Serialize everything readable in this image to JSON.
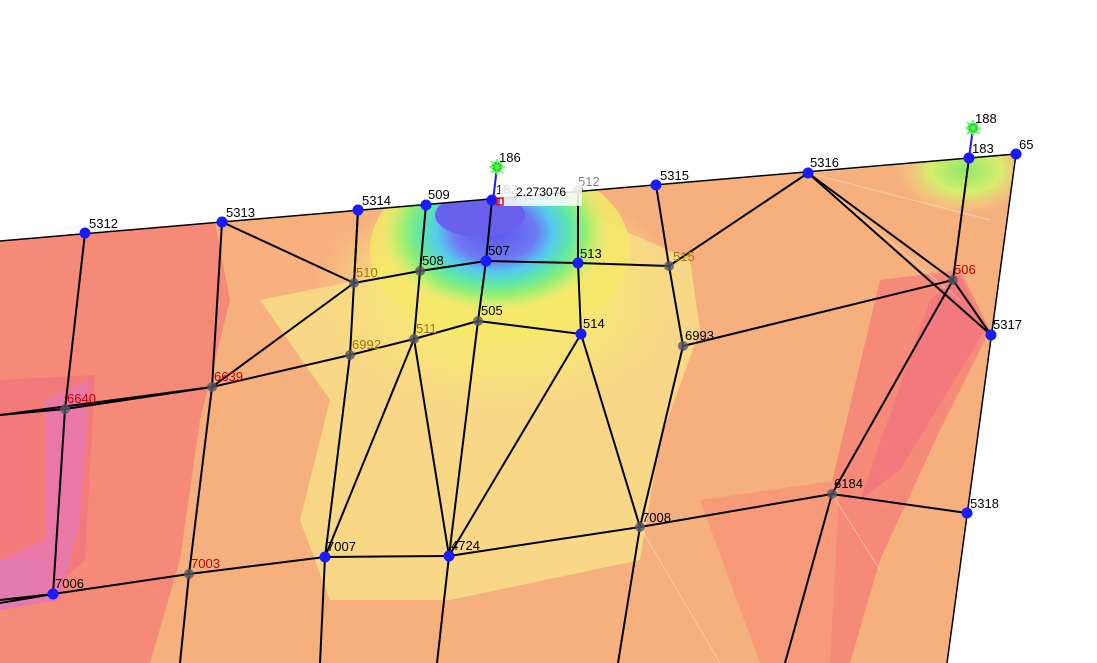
{
  "nodes": [
    {
      "id": "5312",
      "label": "5312"
    },
    {
      "id": "5313",
      "label": "5313"
    },
    {
      "id": "5314",
      "label": "5314"
    },
    {
      "id": "509",
      "label": "509"
    },
    {
      "id": "182",
      "label": "182"
    },
    {
      "id": "512",
      "label": "512"
    },
    {
      "id": "5315",
      "label": "5315"
    },
    {
      "id": "5316",
      "label": "5316"
    },
    {
      "id": "183",
      "label": "183"
    },
    {
      "id": "65",
      "label": "65"
    },
    {
      "id": "186",
      "label": "186"
    },
    {
      "id": "188",
      "label": "188"
    },
    {
      "id": "510",
      "label": "510"
    },
    {
      "id": "508",
      "label": "508"
    },
    {
      "id": "507",
      "label": "507"
    },
    {
      "id": "513",
      "label": "513"
    },
    {
      "id": "515",
      "label": "515"
    },
    {
      "id": "506",
      "label": "506"
    },
    {
      "id": "505",
      "label": "505"
    },
    {
      "id": "511",
      "label": "511"
    },
    {
      "id": "514",
      "label": "514"
    },
    {
      "id": "6993",
      "label": "6993"
    },
    {
      "id": "5317",
      "label": "5317"
    },
    {
      "id": "6992",
      "label": "6992"
    },
    {
      "id": "6639",
      "label": "6639"
    },
    {
      "id": "6640",
      "label": "6640"
    },
    {
      "id": "6184",
      "label": "6184"
    },
    {
      "id": "5318",
      "label": "5318"
    },
    {
      "id": "7008",
      "label": "7008"
    },
    {
      "id": "7007",
      "label": "7007"
    },
    {
      "id": "4724",
      "label": "4724"
    },
    {
      "id": "7003",
      "label": "7003"
    },
    {
      "id": "7006",
      "label": "7006"
    }
  ],
  "tooltip": {
    "value": "2.273076"
  },
  "colors": {
    "edge": "#000000",
    "node_blue": "#1a1aff",
    "node_gray": "#555566",
    "boundary": "#000000"
  }
}
